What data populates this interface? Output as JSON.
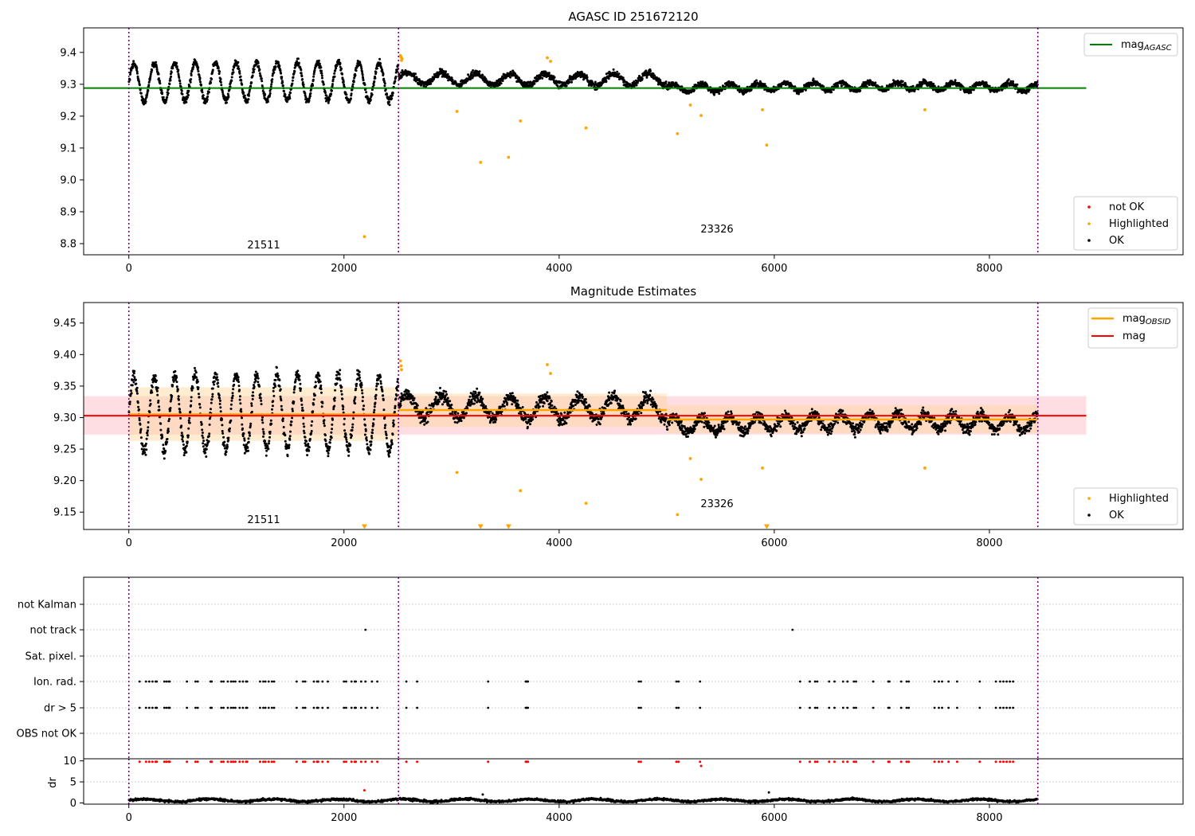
{
  "colors": {
    "ok": "#000000",
    "not_ok": "#ff0000",
    "highlighted": "#ffa500",
    "mag_agasc": "#008000",
    "mag": "#ff0000",
    "mag_obsid": "#ffa500",
    "obs_boundary": "#800080",
    "band_mag": "#ffb6c1",
    "band_obsid": "#ffd59a",
    "grid": "#b0b0b0"
  },
  "chart_data": [
    {
      "type": "scatter",
      "title": "AGASC ID 251672120",
      "xlabel": "",
      "ylabel": "",
      "xlim": [
        -420,
        9800
      ],
      "ylim": [
        8.765,
        9.477
      ],
      "xticks": [
        0,
        2000,
        4000,
        6000,
        8000
      ],
      "yticks": [
        8.8,
        8.9,
        9.0,
        9.1,
        9.2,
        9.3,
        9.4
      ],
      "ytick_labels": [
        "8.8",
        "8.9",
        "9.0",
        "9.1",
        "9.2",
        "9.3",
        "9.4"
      ],
      "obs_boundaries": [
        0,
        2507,
        8450
      ],
      "annotations": [
        {
          "text": "21511",
          "x": 1250,
          "y": 8.795
        },
        {
          "text": "23326",
          "x": 5470,
          "y": 8.845
        }
      ],
      "mag_agasc_line": {
        "value": 9.288,
        "x": [
          -420,
          8900
        ]
      },
      "ok_series_segments": [
        {
          "x_start": 0,
          "x_end": 2507,
          "base": 9.305,
          "amplitude": 0.06,
          "period": 190,
          "scatter": 0.018
        },
        {
          "x_start": 2507,
          "x_end": 5000,
          "base": 9.318,
          "amplitude": 0.018,
          "period": 320,
          "scatter": 0.018
        },
        {
          "x_start": 5000,
          "x_end": 8450,
          "base": 9.29,
          "amplitude": 0.012,
          "period": 260,
          "scatter": 0.016
        }
      ],
      "highlighted_points": [
        {
          "x": 2190,
          "y": 8.822
        },
        {
          "x": 3050,
          "y": 9.215
        },
        {
          "x": 3270,
          "y": 9.055
        },
        {
          "x": 3530,
          "y": 9.071
        },
        {
          "x": 3640,
          "y": 9.185
        },
        {
          "x": 3890,
          "y": 9.383
        },
        {
          "x": 3920,
          "y": 9.372
        },
        {
          "x": 4250,
          "y": 9.163
        },
        {
          "x": 5100,
          "y": 9.145
        },
        {
          "x": 5220,
          "y": 9.235
        },
        {
          "x": 5320,
          "y": 9.202
        },
        {
          "x": 5890,
          "y": 9.22
        },
        {
          "x": 5930,
          "y": 9.109
        },
        {
          "x": 7400,
          "y": 9.22
        },
        {
          "x": 2525,
          "y": 9.39
        },
        {
          "x": 2530,
          "y": 9.385
        },
        {
          "x": 2535,
          "y": 9.375
        },
        {
          "x": 2540,
          "y": 9.38
        }
      ],
      "legends": [
        {
          "position": "upper-right",
          "entries": [
            {
              "label": "mag",
              "sub": "AGASC",
              "kind": "line",
              "color_key": "mag_agasc"
            }
          ]
        },
        {
          "position": "lower-right",
          "entries": [
            {
              "label": "not OK",
              "kind": "dot",
              "color_key": "not_ok"
            },
            {
              "label": "Highlighted",
              "kind": "dot",
              "color_key": "highlighted"
            },
            {
              "label": "OK",
              "kind": "dot",
              "color_key": "ok"
            }
          ]
        }
      ]
    },
    {
      "type": "scatter",
      "title": "Magnitude Estimates",
      "xlabel": "",
      "ylabel": "",
      "xlim": [
        -420,
        9800
      ],
      "ylim": [
        9.1225,
        9.4825
      ],
      "xticks": [
        0,
        2000,
        4000,
        6000,
        8000
      ],
      "yticks": [
        9.15,
        9.2,
        9.25,
        9.3,
        9.35,
        9.4,
        9.45
      ],
      "ytick_labels": [
        "9.15",
        "9.20",
        "9.25",
        "9.30",
        "9.35",
        "9.40",
        "9.45"
      ],
      "obs_boundaries": [
        0,
        2507,
        8450
      ],
      "annotations": [
        {
          "text": "21511",
          "x": 1250,
          "y": 9.135
        },
        {
          "text": "23326",
          "x": 5470,
          "y": 9.164
        }
      ],
      "mag_line": {
        "value": 9.303,
        "x": [
          -420,
          8900
        ],
        "band": [
          9.273,
          9.334
        ]
      },
      "mag_obsid": [
        {
          "x_start": 0,
          "x_end": 2507,
          "value": 9.305,
          "band": [
            9.263,
            9.348
          ]
        },
        {
          "x_start": 2507,
          "x_end": 5000,
          "value": 9.312,
          "band": [
            9.285,
            9.338
          ]
        },
        {
          "x_start": 5000,
          "x_end": 8450,
          "value": 9.297,
          "band": [
            9.275,
            9.32
          ]
        }
      ],
      "ok_series_segments": [
        {
          "x_start": 0,
          "x_end": 2507,
          "base": 9.305,
          "amplitude": 0.06,
          "period": 190,
          "scatter": 0.018
        },
        {
          "x_start": 2507,
          "x_end": 5000,
          "base": 9.318,
          "amplitude": 0.018,
          "period": 320,
          "scatter": 0.018
        },
        {
          "x_start": 5000,
          "x_end": 8450,
          "base": 9.29,
          "amplitude": 0.012,
          "period": 260,
          "scatter": 0.016
        }
      ],
      "highlighted_points": [
        {
          "x": 3050,
          "y": 9.213
        },
        {
          "x": 3640,
          "y": 9.184
        },
        {
          "x": 3890,
          "y": 9.384
        },
        {
          "x": 3920,
          "y": 9.37
        },
        {
          "x": 4250,
          "y": 9.164
        },
        {
          "x": 5100,
          "y": 9.146
        },
        {
          "x": 5220,
          "y": 9.235
        },
        {
          "x": 5320,
          "y": 9.202
        },
        {
          "x": 5890,
          "y": 9.22
        },
        {
          "x": 7400,
          "y": 9.22
        },
        {
          "x": 2525,
          "y": 9.39
        },
        {
          "x": 2530,
          "y": 9.382
        },
        {
          "x": 2535,
          "y": 9.376
        }
      ],
      "off_scale_markers": [
        {
          "x": 2190,
          "y": 9.127
        },
        {
          "x": 3270,
          "y": 9.127
        },
        {
          "x": 3530,
          "y": 9.127
        },
        {
          "x": 5930,
          "y": 9.127
        }
      ],
      "legends": [
        {
          "position": "upper-right",
          "entries": [
            {
              "label": "mag",
              "sub": "OBSID",
              "kind": "line",
              "color_key": "mag_obsid"
            },
            {
              "label": "mag",
              "kind": "line",
              "color_key": "mag"
            }
          ]
        },
        {
          "position": "lower-right",
          "entries": [
            {
              "label": "Highlighted",
              "kind": "dot",
              "color_key": "highlighted"
            },
            {
              "label": "OK",
              "kind": "dot",
              "color_key": "ok"
            }
          ]
        }
      ]
    },
    {
      "type": "scatter",
      "title": "",
      "xlabel": "",
      "ylabel": "",
      "xlim": [
        -420,
        9800
      ],
      "categories": [
        "OBS not OK",
        "dr > 5",
        "Ion. rad.",
        "Sat. pixel.",
        "not track",
        "not Kalman"
      ],
      "flag_x": {
        "Ion. rad.": [
          100,
          160,
          190,
          220,
          250,
          260,
          330,
          350,
          370,
          380,
          540,
          620,
          640,
          760,
          770,
          860,
          880,
          920,
          950,
          970,
          990,
          1030,
          1060,
          1090,
          1100,
          1220,
          1250,
          1270,
          1300,
          1330,
          1350,
          1560,
          1620,
          1640,
          1720,
          1750,
          1760,
          1800,
          1850,
          2000,
          2020,
          2070,
          2100,
          2110,
          2160,
          2200,
          2260,
          2310,
          2580,
          2680,
          3340,
          3690,
          3700,
          3710,
          4740,
          4760,
          5090,
          5110,
          5310,
          6240,
          6330,
          6380,
          6400,
          6510,
          6560,
          6640,
          6680,
          6740,
          6760,
          6920,
          7060,
          7070,
          7180,
          7230,
          7250,
          7490,
          7530,
          7560,
          7620,
          7700,
          7910,
          8060,
          8100,
          8130,
          8160,
          8190,
          8220
        ],
        "dr > 5": [
          100,
          160,
          190,
          220,
          250,
          260,
          330,
          350,
          370,
          380,
          540,
          620,
          640,
          760,
          770,
          860,
          880,
          920,
          950,
          970,
          990,
          1030,
          1060,
          1090,
          1100,
          1220,
          1250,
          1270,
          1300,
          1330,
          1350,
          1560,
          1620,
          1640,
          1720,
          1750,
          1760,
          1800,
          1850,
          2000,
          2020,
          2070,
          2100,
          2110,
          2160,
          2200,
          2260,
          2310,
          2580,
          2680,
          3340,
          3690,
          3700,
          3710,
          4740,
          4760,
          5090,
          5110,
          5310,
          6240,
          6330,
          6380,
          6400,
          6510,
          6560,
          6640,
          6680,
          6740,
          6760,
          6920,
          7060,
          7070,
          7180,
          7230,
          7250,
          7490,
          7530,
          7560,
          7620,
          7700,
          7910,
          8060,
          8100,
          8130,
          8160,
          8190,
          8220
        ],
        "not track": [
          2200,
          6170
        ]
      }
    },
    {
      "type": "scatter",
      "title": "",
      "xlabel": "",
      "ylabel": "dr",
      "xlim": [
        -420,
        9800
      ],
      "ylim": [
        -0.3,
        10.5
      ],
      "xticks": [
        0,
        2000,
        4000,
        6000,
        8000
      ],
      "yticks": [
        0,
        5,
        10
      ],
      "ytick_labels": [
        "0",
        "5",
        "10"
      ],
      "obs_boundaries": [
        0,
        2507,
        8450
      ],
      "dr_base": {
        "base": 0.6,
        "amplitude": 0.3,
        "scatter": 0.25
      },
      "red_flag_y": 9.8,
      "extra_points": [
        {
          "x": 2190,
          "y": 3.0,
          "color_key": "not_ok"
        },
        {
          "x": 3290,
          "y": 2.0,
          "color_key": "ok"
        },
        {
          "x": 5950,
          "y": 2.5,
          "color_key": "ok"
        },
        {
          "x": 5320,
          "y": 8.8,
          "color_key": "not_ok"
        }
      ]
    }
  ]
}
